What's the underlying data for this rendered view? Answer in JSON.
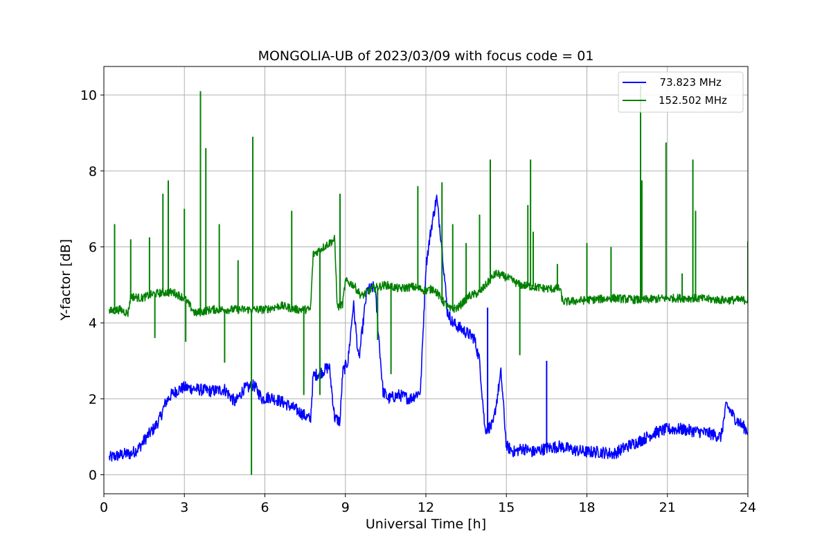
{
  "chart_data": {
    "type": "line",
    "title": "MONGOLIA-UB of 2023/03/09 with focus code = 01",
    "xlabel": "Universal Time [h]",
    "ylabel": "Y-factor [dB]",
    "xlim": [
      0,
      24
    ],
    "ylim": [
      -0.5,
      10.75
    ],
    "xticks": [
      0,
      3,
      6,
      9,
      12,
      15,
      18,
      21,
      24
    ],
    "xtick_labels": [
      "0",
      "3",
      "6",
      "9",
      "12",
      "15",
      "18",
      "21",
      "24"
    ],
    "yticks": [
      0,
      2,
      4,
      6,
      8,
      10
    ],
    "ytick_labels": [
      "0",
      "2",
      "4",
      "6",
      "8",
      "10"
    ],
    "grid": true,
    "legend_position": "upper right",
    "series": [
      {
        "name": "  73.823 MHz",
        "color": "#0000ff",
        "x": [
          0.2,
          0.5,
          0.8,
          1.0,
          1.3,
          1.6,
          1.9,
          2.1,
          2.3,
          2.5,
          2.8,
          3.0,
          3.5,
          4.0,
          4.5,
          4.9,
          5.2,
          5.6,
          5.9,
          6.2,
          6.7,
          7.2,
          7.7,
          7.8,
          8.1,
          8.4,
          8.6,
          8.8,
          8.9,
          9.1,
          9.3,
          9.5,
          9.8,
          10.1,
          10.4,
          10.6,
          11.0,
          11.4,
          11.8,
          12.0,
          12.2,
          12.4,
          12.6,
          12.8,
          13.0,
          13.4,
          13.8,
          14.0,
          14.2,
          14.5,
          14.8,
          15.0,
          15.3,
          15.6,
          16.0,
          16.5,
          17.0,
          17.5,
          18.0,
          18.5,
          19.0,
          19.5,
          20.0,
          20.5,
          21.0,
          21.5,
          22.0,
          22.5,
          23.0,
          23.2,
          23.5,
          24.0
        ],
        "y": [
          0.45,
          0.5,
          0.55,
          0.55,
          0.7,
          1.0,
          1.25,
          1.5,
          1.9,
          2.1,
          2.25,
          2.3,
          2.25,
          2.2,
          2.25,
          1.9,
          2.25,
          2.35,
          2.0,
          2.05,
          1.9,
          1.7,
          1.45,
          2.6,
          2.7,
          2.85,
          1.5,
          1.4,
          2.7,
          3.0,
          4.5,
          3.0,
          4.85,
          4.95,
          2.2,
          2.0,
          2.1,
          2.0,
          2.2,
          5.5,
          6.5,
          7.3,
          6.0,
          4.3,
          4.0,
          3.8,
          3.6,
          3.0,
          1.2,
          1.3,
          2.7,
          0.75,
          0.6,
          0.7,
          0.6,
          0.7,
          0.75,
          0.65,
          0.6,
          0.6,
          0.55,
          0.75,
          0.9,
          1.1,
          1.2,
          1.2,
          1.15,
          1.1,
          1.0,
          1.85,
          1.5,
          1.15
        ],
        "spikes": [
          {
            "x": 16.5,
            "y": 3.0
          },
          {
            "x": 14.3,
            "y": 4.4
          }
        ]
      },
      {
        "name": "152.502 MHz",
        "color": "#008000",
        "x": [
          0.2,
          0.6,
          0.9,
          1.0,
          1.4,
          1.8,
          2.2,
          2.6,
          3.0,
          3.4,
          4.0,
          5.0,
          6.0,
          6.6,
          7.2,
          7.7,
          7.8,
          8.2,
          8.6,
          8.7,
          8.9,
          9.0,
          9.3,
          9.6,
          10.0,
          10.5,
          11.0,
          11.5,
          12.0,
          12.3,
          12.6,
          12.9,
          13.2,
          13.6,
          14.0,
          14.3,
          14.6,
          15.0,
          15.5,
          16.0,
          16.5,
          17.0,
          17.1,
          18.0,
          19.0,
          20.0,
          21.0,
          22.0,
          23.0,
          24.0
        ],
        "y": [
          4.3,
          4.35,
          4.25,
          4.7,
          4.65,
          4.75,
          4.8,
          4.8,
          4.65,
          4.25,
          4.35,
          4.35,
          4.35,
          4.45,
          4.35,
          4.35,
          5.8,
          6.0,
          6.2,
          4.4,
          4.5,
          5.1,
          5.0,
          4.7,
          4.9,
          5.0,
          4.9,
          4.95,
          4.85,
          4.9,
          4.6,
          4.35,
          4.4,
          4.7,
          4.8,
          5.05,
          5.3,
          5.2,
          5.0,
          4.95,
          4.9,
          4.9,
          4.55,
          4.6,
          4.65,
          4.6,
          4.65,
          4.65,
          4.6,
          4.6
        ],
        "spikes": [
          {
            "x": 0.4,
            "y": 6.6
          },
          {
            "x": 1.0,
            "y": 6.2
          },
          {
            "x": 1.7,
            "y": 6.25
          },
          {
            "x": 1.9,
            "y": 3.6
          },
          {
            "x": 2.2,
            "y": 7.4
          },
          {
            "x": 2.4,
            "y": 7.75
          },
          {
            "x": 3.0,
            "y": 7.0
          },
          {
            "x": 3.05,
            "y": 3.5
          },
          {
            "x": 3.6,
            "y": 10.1
          },
          {
            "x": 3.8,
            "y": 8.6
          },
          {
            "x": 4.3,
            "y": 6.6
          },
          {
            "x": 4.5,
            "y": 2.95
          },
          {
            "x": 5.0,
            "y": 5.65
          },
          {
            "x": 5.5,
            "y": 0.0
          },
          {
            "x": 5.55,
            "y": 8.9
          },
          {
            "x": 7.0,
            "y": 6.95
          },
          {
            "x": 7.45,
            "y": 2.1
          },
          {
            "x": 8.05,
            "y": 2.1
          },
          {
            "x": 8.8,
            "y": 7.4
          },
          {
            "x": 10.2,
            "y": 3.55
          },
          {
            "x": 10.7,
            "y": 2.65
          },
          {
            "x": 11.7,
            "y": 7.6
          },
          {
            "x": 12.6,
            "y": 7.7
          },
          {
            "x": 13.0,
            "y": 6.6
          },
          {
            "x": 13.5,
            "y": 6.1
          },
          {
            "x": 14.0,
            "y": 6.85
          },
          {
            "x": 14.4,
            "y": 8.3
          },
          {
            "x": 15.5,
            "y": 3.15
          },
          {
            "x": 15.8,
            "y": 7.1
          },
          {
            "x": 15.9,
            "y": 8.3
          },
          {
            "x": 16.0,
            "y": 6.4
          },
          {
            "x": 16.9,
            "y": 5.55
          },
          {
            "x": 18.0,
            "y": 6.1
          },
          {
            "x": 18.9,
            "y": 6.0
          },
          {
            "x": 20.0,
            "y": 10.25
          },
          {
            "x": 20.05,
            "y": 7.75
          },
          {
            "x": 20.95,
            "y": 8.75
          },
          {
            "x": 21.55,
            "y": 5.3
          },
          {
            "x": 21.95,
            "y": 8.3
          },
          {
            "x": 22.05,
            "y": 6.95
          },
          {
            "x": 24.0,
            "y": 6.15
          }
        ]
      }
    ]
  }
}
